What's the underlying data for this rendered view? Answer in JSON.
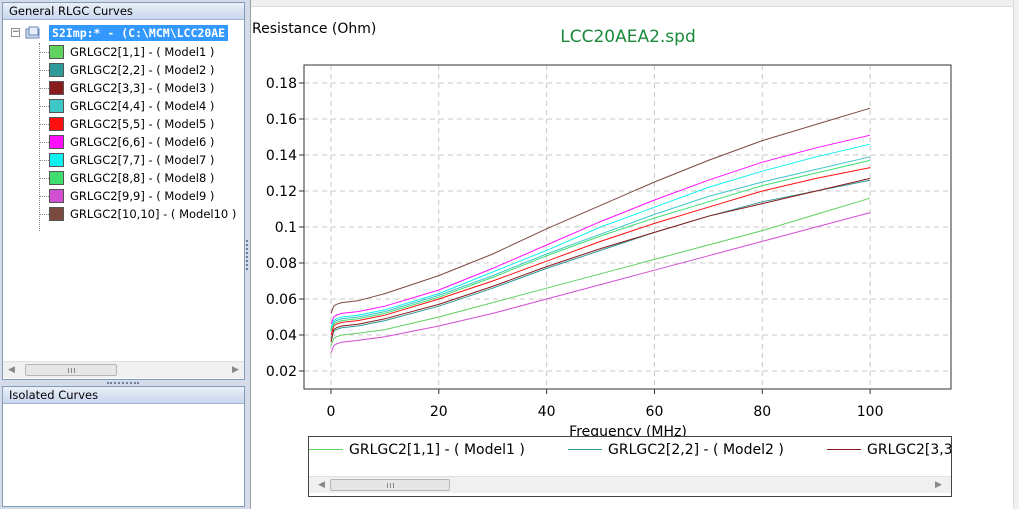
{
  "tree_panel": {
    "title": "General RLGC Curves",
    "root_label": "S2Imp:* - (C:\\MCM\\LCC20AE",
    "items": [
      {
        "label": "GRLGC2[1,1] - ( Model1 )",
        "color": "#5fd25f"
      },
      {
        "label": "GRLGC2[2,2] - ( Model2 )",
        "color": "#2f9a9a"
      },
      {
        "label": "GRLGC2[3,3] - ( Model3 )",
        "color": "#8b1a1a"
      },
      {
        "label": "GRLGC2[4,4] - ( Model4 )",
        "color": "#3ec7c7"
      },
      {
        "label": "GRLGC2[5,5] - ( Model5 )",
        "color": "#ff1010"
      },
      {
        "label": "GRLGC2[6,6] - ( Model6 )",
        "color": "#ff10ff"
      },
      {
        "label": "GRLGC2[7,7] - ( Model7 )",
        "color": "#10f0f0"
      },
      {
        "label": "GRLGC2[8,8] - ( Model8 )",
        "color": "#3fde6f"
      },
      {
        "label": "GRLGC2[9,9] - ( Model9 )",
        "color": "#d24fd2"
      },
      {
        "label": "GRLGC2[10,10] - ( Model10 )",
        "color": "#7a4a3f"
      }
    ]
  },
  "isolated_panel": {
    "title": "Isolated Curves"
  },
  "chart_data": {
    "type": "line",
    "title": "LCC20AEA2.spd",
    "title_color": "#1a8a3a",
    "ylabel": "Resistance (Ohm)",
    "xlabel": "Frequency (MHz)",
    "xlim": [
      -5,
      115
    ],
    "ylim": [
      0.01,
      0.19
    ],
    "xticks": [
      0,
      20,
      40,
      60,
      80,
      100
    ],
    "yticks": [
      0.02,
      0.04,
      0.06,
      0.08,
      0.1,
      0.12,
      0.14,
      0.16,
      0.18
    ],
    "ytick_labels": [
      "0.02",
      "0.04",
      "0.06",
      "0.08",
      "0.1",
      "0.12",
      "0.14",
      "0.16",
      "0.18"
    ],
    "grid": true,
    "x": [
      0,
      0.5,
      1,
      2,
      5,
      10,
      20,
      30,
      40,
      50,
      60,
      70,
      80,
      90,
      100
    ],
    "series": [
      {
        "name": "GRLGC2[1,1] - ( Model1 )",
        "color": "#5fd25f",
        "values": [
          0.034,
          0.038,
          0.039,
          0.04,
          0.041,
          0.043,
          0.05,
          0.058,
          0.066,
          0.074,
          0.082,
          0.09,
          0.098,
          0.107,
          0.116
        ]
      },
      {
        "name": "GRLGC2[2,2] - ( Model2 )",
        "color": "#2f9a9a",
        "values": [
          0.038,
          0.042,
          0.043,
          0.044,
          0.045,
          0.048,
          0.056,
          0.066,
          0.077,
          0.087,
          0.097,
          0.106,
          0.114,
          0.12,
          0.126
        ]
      },
      {
        "name": "GRLGC2[3,3] - ( Model3 )",
        "color": "#8b1a1a",
        "values": [
          0.036,
          0.043,
          0.044,
          0.045,
          0.046,
          0.049,
          0.057,
          0.067,
          0.078,
          0.088,
          0.097,
          0.106,
          0.113,
          0.12,
          0.127
        ]
      },
      {
        "name": "GRLGC2[4,4] - ( Model4 )",
        "color": "#3ec7c7",
        "values": [
          0.042,
          0.047,
          0.048,
          0.049,
          0.05,
          0.053,
          0.062,
          0.073,
          0.085,
          0.096,
          0.107,
          0.117,
          0.125,
          0.132,
          0.139
        ]
      },
      {
        "name": "GRLGC2[5,5] - ( Model5 )",
        "color": "#ff1010",
        "values": [
          0.04,
          0.045,
          0.046,
          0.047,
          0.048,
          0.051,
          0.06,
          0.07,
          0.081,
          0.092,
          0.102,
          0.111,
          0.12,
          0.127,
          0.133
        ]
      },
      {
        "name": "GRLGC2[6,6] - ( Model6 )",
        "color": "#ff10ff",
        "values": [
          0.046,
          0.05,
          0.051,
          0.052,
          0.053,
          0.056,
          0.065,
          0.077,
          0.09,
          0.103,
          0.115,
          0.126,
          0.136,
          0.144,
          0.151
        ]
      },
      {
        "name": "GRLGC2[7,7] - ( Model7 )",
        "color": "#10f0f0",
        "values": [
          0.044,
          0.048,
          0.049,
          0.05,
          0.051,
          0.054,
          0.063,
          0.075,
          0.087,
          0.1,
          0.111,
          0.122,
          0.131,
          0.139,
          0.146
        ]
      },
      {
        "name": "GRLGC2[8,8] - ( Model8 )",
        "color": "#3fde6f",
        "values": [
          0.043,
          0.046,
          0.047,
          0.048,
          0.049,
          0.052,
          0.061,
          0.072,
          0.084,
          0.095,
          0.105,
          0.114,
          0.123,
          0.13,
          0.137
        ]
      },
      {
        "name": "GRLGC2[9,9] - ( Model9 )",
        "color": "#d24fd2",
        "values": [
          0.03,
          0.034,
          0.035,
          0.036,
          0.037,
          0.039,
          0.045,
          0.052,
          0.06,
          0.068,
          0.076,
          0.084,
          0.092,
          0.1,
          0.108
        ]
      },
      {
        "name": "GRLGC2[10,10] - ( Model10 )",
        "color": "#7a4a3f",
        "values": [
          0.052,
          0.056,
          0.057,
          0.058,
          0.059,
          0.063,
          0.073,
          0.085,
          0.099,
          0.112,
          0.125,
          0.137,
          0.148,
          0.157,
          0.166
        ]
      }
    ],
    "legend": {
      "placement": "bottom",
      "entries": [
        {
          "label": "GRLGC2[1,1] - ( Model1 )",
          "color": "#5fd25f"
        },
        {
          "label": "GRLGC2[2,2] - ( Model2 )",
          "color": "#2f9a9a"
        },
        {
          "label": "GRLGC2[3,3",
          "color": "#8b1a1a"
        }
      ]
    }
  },
  "icons": {
    "tree_scroll_left": "◀",
    "tree_scroll_right": "▶",
    "legend_scroll_left": "◀",
    "legend_scroll_right": "▶",
    "expander": "−"
  }
}
